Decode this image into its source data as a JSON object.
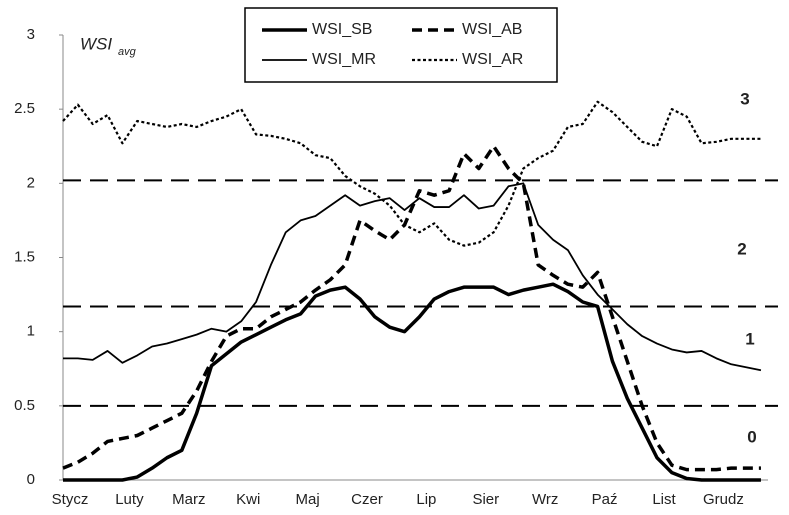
{
  "chart_data": {
    "type": "line",
    "ylabel": "WSI",
    "ylabel_subscript": "avg",
    "categories": [
      "Stycz",
      null,
      null,
      null,
      "Luty",
      null,
      null,
      null,
      "Marz",
      null,
      null,
      null,
      "Kwi",
      null,
      null,
      null,
      "Maj",
      null,
      null,
      null,
      "Czer",
      null,
      null,
      null,
      "Lip",
      null,
      null,
      null,
      "Sier",
      null,
      null,
      null,
      "Wrz",
      null,
      null,
      null,
      "Paź",
      null,
      null,
      null,
      "List",
      null,
      null,
      null,
      "Grudz",
      null,
      null,
      null
    ],
    "ylim": [
      0,
      3
    ],
    "yticks": [
      0,
      0.5,
      1,
      1.5,
      2,
      2.5,
      3
    ],
    "thresholds": [
      0.5,
      1.17,
      2.02
    ],
    "annotations": [
      "3",
      "2",
      "1",
      "0"
    ],
    "series": [
      {
        "name": "WSI_SB",
        "color": "#000000",
        "dash": "solid",
        "width": 3.5,
        "values": [
          0,
          0,
          0,
          0,
          0,
          0.02,
          0.08,
          0.15,
          0.2,
          0.45,
          0.77,
          0.85,
          0.93,
          0.98,
          1.03,
          1.08,
          1.12,
          1.24,
          1.28,
          1.3,
          1.22,
          1.1,
          1.03,
          1.0,
          1.1,
          1.22,
          1.27,
          1.3,
          1.3,
          1.3,
          1.25,
          1.28,
          1.3,
          1.32,
          1.27,
          1.2,
          1.17,
          0.8,
          0.55,
          0.35,
          0.15,
          0.05,
          0.01,
          0,
          0,
          0,
          0,
          0
        ]
      },
      {
        "name": "WSI_AB",
        "color": "#000000",
        "dash": "dashed",
        "width": 3.5,
        "values": [
          0.08,
          0.12,
          0.18,
          0.26,
          0.28,
          0.3,
          0.35,
          0.4,
          0.45,
          0.6,
          0.8,
          0.97,
          1.02,
          1.02,
          1.1,
          1.15,
          1.2,
          1.28,
          1.35,
          1.45,
          1.75,
          1.68,
          1.62,
          1.72,
          1.95,
          1.92,
          1.95,
          2.2,
          2.1,
          2.25,
          2.1,
          2.0,
          1.45,
          1.38,
          1.32,
          1.3,
          1.4,
          1.1,
          0.8,
          0.5,
          0.25,
          0.1,
          0.07,
          0.07,
          0.07,
          0.08,
          0.08,
          0.08
        ]
      },
      {
        "name": "WSI_MR",
        "color": "#000000",
        "dash": "solid",
        "width": 1.8,
        "values": [
          0.82,
          0.82,
          0.81,
          0.87,
          0.79,
          0.84,
          0.9,
          0.92,
          0.95,
          0.98,
          1.02,
          1.0,
          1.07,
          1.2,
          1.45,
          1.67,
          1.75,
          1.78,
          1.85,
          1.92,
          1.85,
          1.88,
          1.9,
          1.82,
          1.9,
          1.84,
          1.84,
          1.92,
          1.83,
          1.85,
          1.98,
          2.0,
          1.72,
          1.62,
          1.55,
          1.38,
          1.25,
          1.15,
          1.05,
          0.97,
          0.92,
          0.88,
          0.86,
          0.87,
          0.82,
          0.78,
          0.76,
          0.74
        ]
      },
      {
        "name": "WSI_AR",
        "color": "#000000",
        "dash": "dotted",
        "width": 2.2,
        "values": [
          2.42,
          2.53,
          2.4,
          2.46,
          2.27,
          2.42,
          2.4,
          2.38,
          2.4,
          2.38,
          2.42,
          2.45,
          2.5,
          2.33,
          2.32,
          2.3,
          2.27,
          2.19,
          2.17,
          2.05,
          1.98,
          1.93,
          1.85,
          1.72,
          1.67,
          1.73,
          1.62,
          1.58,
          1.6,
          1.67,
          1.85,
          2.1,
          2.17,
          2.22,
          2.38,
          2.4,
          2.55,
          2.48,
          2.38,
          2.28,
          2.25,
          2.5,
          2.45,
          2.27,
          2.28,
          2.3,
          2.3,
          2.3
        ]
      }
    ]
  }
}
